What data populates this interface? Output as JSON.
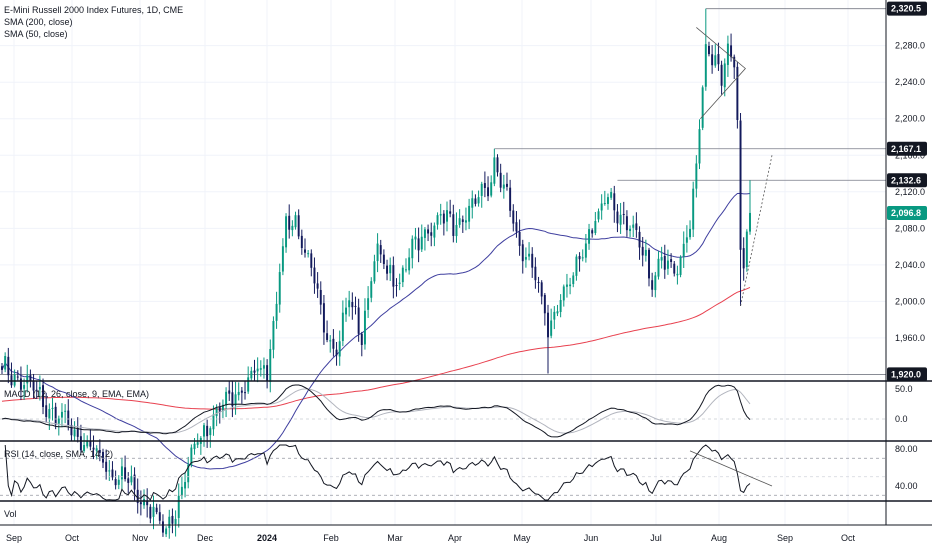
{
  "legend": {
    "main_title": "E-Mini Russell 2000 Index Futures, 1D, CME",
    "sma200": "SMA (200, close)",
    "sma50": "SMA (50, close)",
    "macd": "MACD (12, 26, close, 9, EMA, EMA)",
    "rsi": "RSI (14, close, SMA, 14, 2)",
    "vol": "Vol"
  },
  "colors": {
    "up": "#089981",
    "down": "#131a5c",
    "sma50": "#3f3f9f",
    "sma200": "#e8414f",
    "last_price_tag": "#089981",
    "tag": "#131722"
  },
  "chart_data": [
    {
      "type": "candlestick",
      "title": "E-Mini Russell 2000 Index Futures, 1D, CME",
      "x_labels": [
        "Sep",
        "Oct",
        "Nov",
        "Dec",
        "2024",
        "Feb",
        "Mar",
        "Apr",
        "May",
        "Jun",
        "Jul",
        "Aug",
        "Sep",
        "Oct"
      ],
      "y_ticks": [
        "1,960.0",
        "2,000.0",
        "2,040.0",
        "2,080.0",
        "2,120.0",
        "2,160.0",
        "2,200.0",
        "2,240.0",
        "2,280.0"
      ],
      "ylim": [
        1915,
        2330
      ],
      "price_tags": [
        "2,320.5",
        "2,167.1",
        "2,132.6",
        "2,096.8",
        "1,920.0"
      ],
      "horizontal_levels": [
        2320.5,
        2167.1,
        2132.6,
        1920.0
      ],
      "last_price": 2096.8,
      "series": [
        {
          "name": "SMA (200, close)",
          "color": "#e8414f"
        },
        {
          "name": "SMA (50, close)",
          "color": "#3f3f9f"
        }
      ]
    },
    {
      "type": "line",
      "title": "MACD (12, 26, close, 9, EMA, EMA)",
      "y_ticks": [
        "50.0",
        "0.0"
      ]
    },
    {
      "type": "line",
      "title": "RSI (14, close, SMA, 14, 2)",
      "y_ticks": [
        "80.00",
        "40.00"
      ]
    }
  ]
}
